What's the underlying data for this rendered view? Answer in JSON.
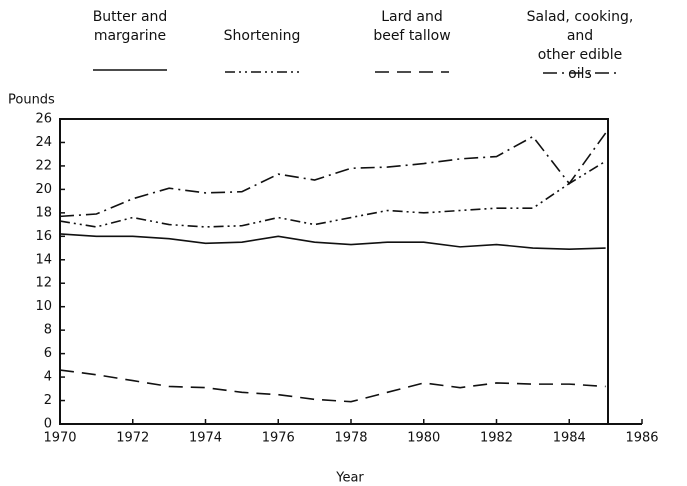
{
  "chart_data": {
    "type": "line",
    "y_label": "Pounds",
    "x_label": "Year",
    "x": [
      1970,
      1971,
      1972,
      1973,
      1974,
      1975,
      1976,
      1977,
      1978,
      1979,
      1980,
      1981,
      1982,
      1983,
      1984,
      1985
    ],
    "xlim": [
      1970,
      1986
    ],
    "xticks": [
      1970,
      1972,
      1974,
      1976,
      1978,
      1980,
      1982,
      1984,
      1986
    ],
    "ylim": [
      0,
      26
    ],
    "yticks": [
      0,
      2,
      4,
      6,
      8,
      10,
      12,
      14,
      16,
      18,
      20,
      22,
      24,
      26
    ],
    "series": [
      {
        "name": "Butter and\nmargarine",
        "color": "#111111",
        "dash": "solid",
        "values": [
          16.2,
          16.0,
          16.0,
          15.8,
          15.4,
          15.5,
          16.0,
          15.5,
          15.3,
          15.5,
          15.5,
          15.1,
          15.3,
          15.0,
          14.9,
          15.0
        ]
      },
      {
        "name": "Shortening",
        "color": "#111111",
        "dash": "dashdotdot",
        "values": [
          17.3,
          16.8,
          17.6,
          17.0,
          16.8,
          16.9,
          17.6,
          17.0,
          17.6,
          18.2,
          18.0,
          18.2,
          18.4,
          18.4,
          20.5,
          22.4
        ]
      },
      {
        "name": "Lard and\nbeef tallow",
        "color": "#111111",
        "dash": "dash",
        "values": [
          4.6,
          4.2,
          3.7,
          3.2,
          3.1,
          2.7,
          2.5,
          2.1,
          1.9,
          2.7,
          3.5,
          3.1,
          3.5,
          3.4,
          3.4,
          3.2
        ]
      },
      {
        "name": "Salad, cooking, and\nother edible oils",
        "color": "#111111",
        "dash": "dashdot",
        "values": [
          17.7,
          17.9,
          19.2,
          20.1,
          19.7,
          19.8,
          21.3,
          20.8,
          21.8,
          21.9,
          22.2,
          22.6,
          22.8,
          24.5,
          20.5,
          24.8
        ]
      }
    ]
  }
}
